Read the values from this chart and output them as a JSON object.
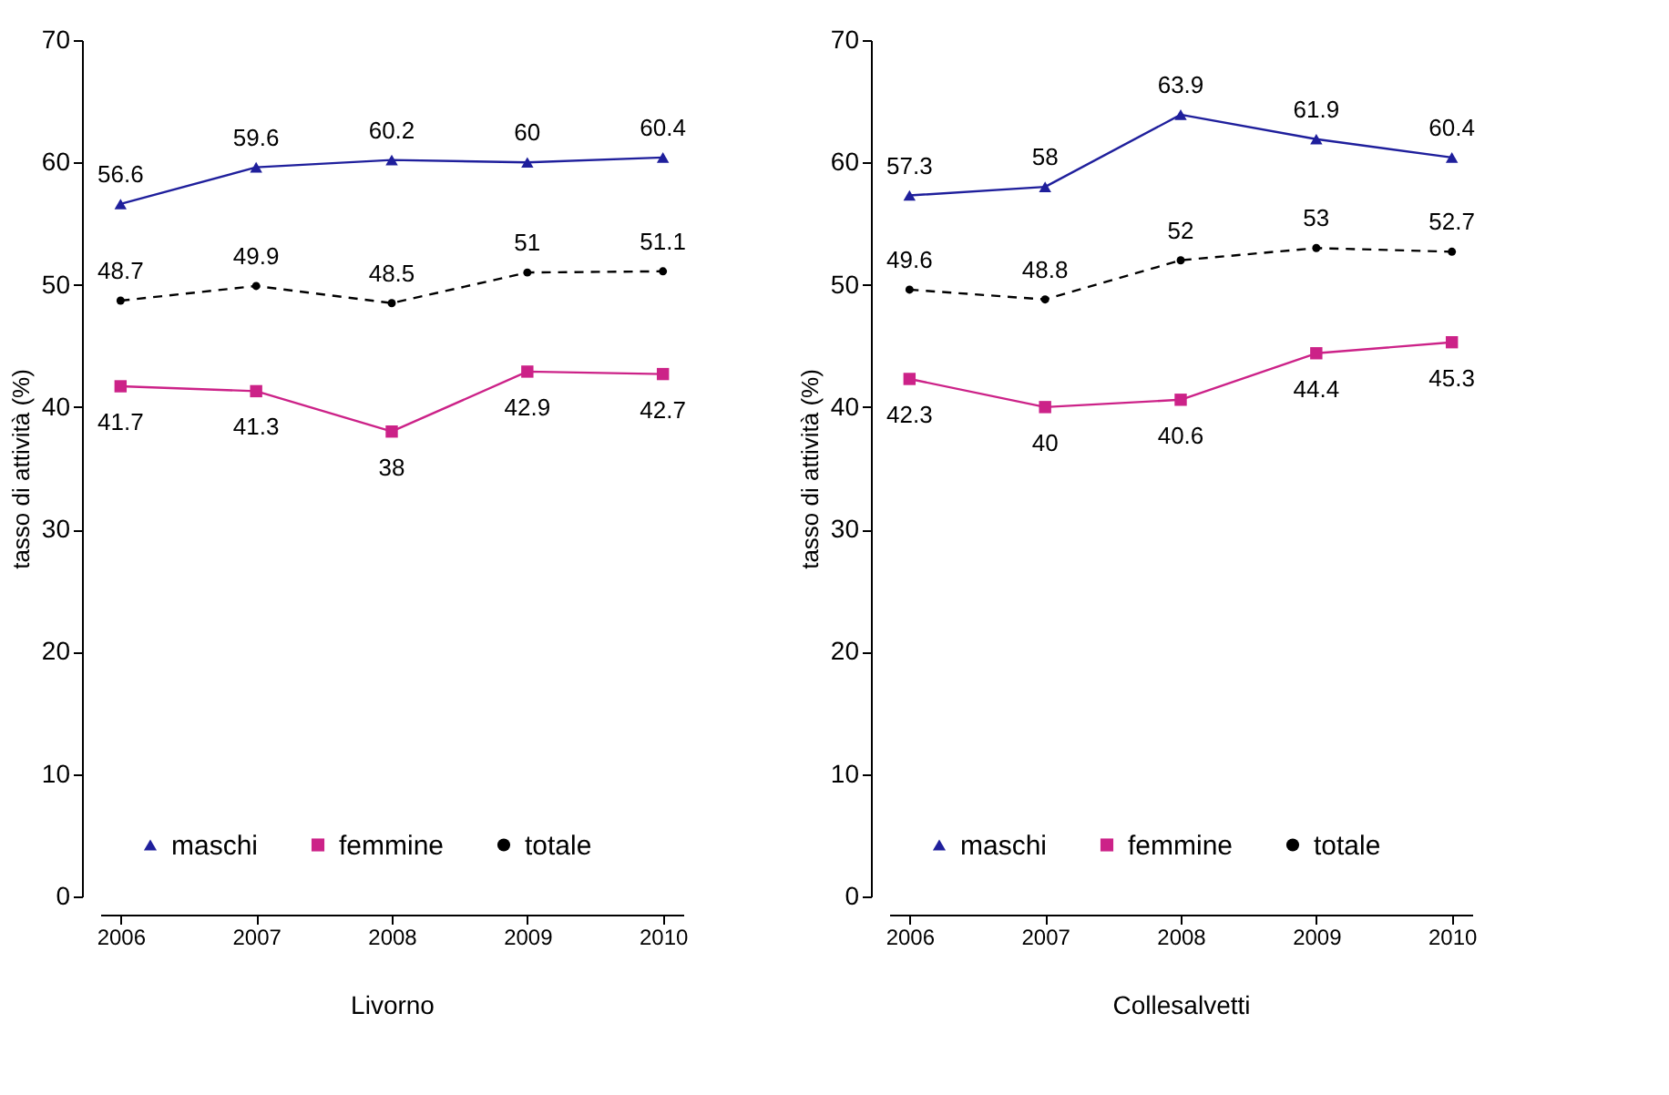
{
  "chart_data": [
    {
      "type": "line",
      "xlabel": "Livorno",
      "ylabel": "tasso di attività (%)",
      "x": [
        2006,
        2007,
        2008,
        2009,
        2010
      ],
      "xlim": [
        2005.85,
        2010.15
      ],
      "xticks": [
        2006,
        2007,
        2008,
        2009,
        2010
      ],
      "ylim": [
        0,
        70
      ],
      "yticks": [
        0,
        10,
        20,
        30,
        40,
        50,
        60,
        70
      ],
      "grid": false,
      "legend": "bottom left",
      "data_labels": true,
      "series": [
        {
          "name": "maschi",
          "color": "#1f1f9c",
          "marker": "triangle",
          "line_style": "solid",
          "values": [
            56.6,
            59.6,
            60.2,
            60,
            60.4
          ]
        },
        {
          "name": "femmine",
          "color": "#cc2288",
          "marker": "square",
          "line_style": "solid",
          "values": [
            41.7,
            41.3,
            38,
            42.9,
            42.7
          ]
        },
        {
          "name": "totale",
          "color": "#000000",
          "marker": "circle",
          "line_style": "dashed",
          "values": [
            48.7,
            49.9,
            48.5,
            51,
            51.1
          ]
        }
      ]
    },
    {
      "type": "line",
      "xlabel": "Collesalvetti",
      "ylabel": "tasso di attività (%)",
      "x": [
        2006,
        2007,
        2008,
        2009,
        2010
      ],
      "xlim": [
        2005.85,
        2010.15
      ],
      "xticks": [
        2006,
        2007,
        2008,
        2009,
        2010
      ],
      "ylim": [
        0,
        70
      ],
      "yticks": [
        0,
        10,
        20,
        30,
        40,
        50,
        60,
        70
      ],
      "grid": false,
      "legend": "bottom left",
      "data_labels": true,
      "series": [
        {
          "name": "maschi",
          "color": "#1f1f9c",
          "marker": "triangle",
          "line_style": "solid",
          "values": [
            57.3,
            58,
            63.9,
            61.9,
            60.4
          ]
        },
        {
          "name": "femmine",
          "color": "#cc2288",
          "marker": "square",
          "line_style": "solid",
          "values": [
            42.3,
            40,
            40.6,
            44.4,
            45.3
          ]
        },
        {
          "name": "totale",
          "color": "#000000",
          "marker": "circle",
          "line_style": "dashed",
          "values": [
            49.6,
            48.8,
            52,
            53,
            52.7
          ]
        }
      ]
    }
  ]
}
